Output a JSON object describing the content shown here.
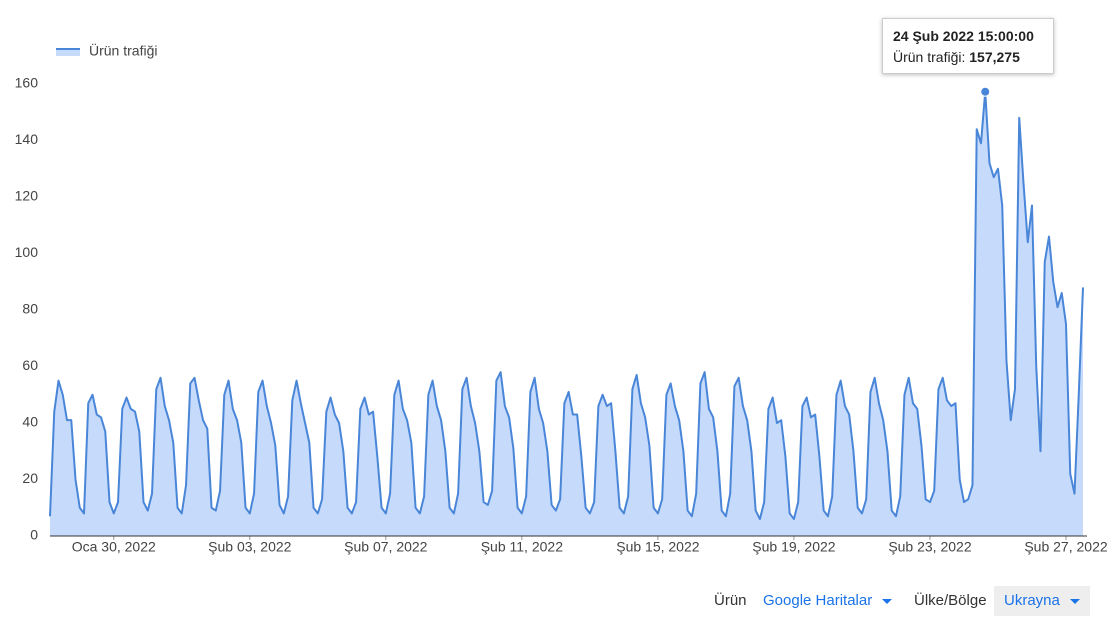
{
  "chart_data": {
    "type": "area",
    "series": [
      {
        "name": "Ürün trafiği",
        "color": "#4a86d8",
        "fill": "#c6dafc",
        "values": [
          7,
          44,
          55,
          50,
          41,
          41,
          20,
          10,
          8,
          47,
          50,
          43,
          42,
          37,
          12,
          8,
          12,
          45,
          49,
          45,
          44,
          37,
          12,
          9,
          15,
          52,
          56,
          46,
          41,
          33,
          10,
          8,
          18,
          54,
          56,
          48,
          41,
          38,
          10,
          9,
          16,
          50,
          55,
          45,
          41,
          33,
          10,
          8,
          15,
          51,
          55,
          46,
          40,
          32,
          11,
          8,
          14,
          48,
          55,
          47,
          40,
          33,
          10,
          8,
          13,
          44,
          49,
          43,
          40,
          30,
          10,
          8,
          12,
          45,
          49,
          43,
          44,
          28,
          10,
          8,
          15,
          50,
          55,
          45,
          41,
          33,
          10,
          8,
          14,
          50,
          55,
          46,
          41,
          30,
          10,
          8,
          15,
          52,
          56,
          46,
          40,
          30,
          12,
          11,
          16,
          55,
          58,
          46,
          42,
          31,
          10,
          8,
          14,
          51,
          56,
          45,
          40,
          30,
          11,
          9,
          13,
          47,
          51,
          43,
          43,
          28,
          10,
          8,
          12,
          46,
          50,
          46,
          47,
          30,
          10,
          8,
          14,
          52,
          57,
          47,
          42,
          32,
          10,
          8,
          13,
          50,
          54,
          46,
          41,
          30,
          9,
          7,
          15,
          54,
          58,
          45,
          42,
          30,
          9,
          7,
          15,
          53,
          56,
          46,
          41,
          30,
          9,
          6,
          12,
          45,
          49,
          40,
          41,
          28,
          8,
          6,
          12,
          46,
          49,
          42,
          43,
          28,
          9,
          7,
          14,
          50,
          55,
          46,
          43,
          30,
          10,
          8,
          13,
          51,
          56,
          47,
          41,
          30,
          9,
          7,
          14,
          50,
          56,
          47,
          45,
          32,
          13,
          12,
          16,
          52,
          56,
          48,
          46,
          47,
          20,
          12,
          13,
          18,
          144,
          139,
          157.275,
          132,
          127,
          130,
          117,
          62,
          41,
          52,
          148,
          125,
          104,
          117,
          60,
          30,
          97,
          106,
          90,
          81,
          86,
          75,
          22,
          15,
          50,
          88
        ]
      }
    ],
    "xlim": [
      0,
      243
    ],
    "xticks": [
      {
        "value": 15,
        "label": "Oca 30, 2022"
      },
      {
        "value": 47,
        "label": "Şub 03, 2022"
      },
      {
        "value": 79,
        "label": "Şub 07, 2022"
      },
      {
        "value": 111,
        "label": "Şub 11, 2022"
      },
      {
        "value": 143,
        "label": "Şub 15, 2022"
      },
      {
        "value": 175,
        "label": "Şub 19, 2022"
      },
      {
        "value": 207,
        "label": "Şub 23, 2022"
      },
      {
        "value": 239,
        "label": "Şub 27, 2022"
      }
    ],
    "ylim": [
      0,
      160
    ],
    "yticks": [
      0,
      20,
      40,
      60,
      80,
      100,
      120,
      140,
      160
    ],
    "grid": false,
    "legend": "top-left",
    "tooltip": {
      "index": 220,
      "date": "24 Şub 2022 15:00:00",
      "label": "Ürün trafiği:",
      "value": "157,275"
    }
  },
  "controls": {
    "product_label": "Ürün",
    "product": "Google Haritalar",
    "region_label": "Ülke/Bölge",
    "region": "Ukrayna"
  }
}
